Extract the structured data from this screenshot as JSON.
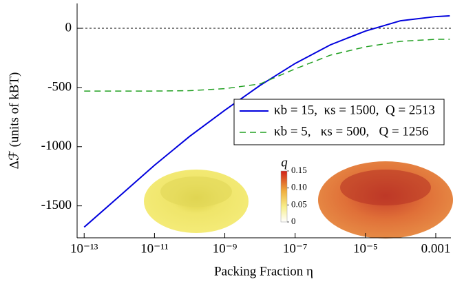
{
  "chart_data": {
    "type": "line",
    "xlabel": "Packing Fraction η",
    "ylabel": "Δℱ (units of kBT)",
    "xscale": "log",
    "xlim": [
      6.3e-14,
      0.0027
    ],
    "ylim": [
      -1770,
      210
    ],
    "xticks": [
      {
        "value": 1e-13,
        "label": "10⁻¹³"
      },
      {
        "value": 1e-11,
        "label": "10⁻¹¹"
      },
      {
        "value": 1e-09,
        "label": "10⁻⁹"
      },
      {
        "value": 1e-07,
        "label": "10⁻⁷"
      },
      {
        "value": 1e-05,
        "label": "10⁻⁵"
      },
      0.001
    ],
    "yticks": [
      0,
      -500,
      -1000,
      -1500
    ],
    "hline": 0,
    "x": [
      1e-13,
      1e-12,
      1e-11,
      1e-10,
      1e-09,
      1e-08,
      1e-07,
      1e-06,
      1e-05,
      0.0001,
      0.001,
      0.0025
    ],
    "series": [
      {
        "name": "κb = 15,  κs = 1500,  Q = 2513",
        "color": "#0000dd",
        "dash": "solid",
        "values": [
          -1680,
          -1419,
          -1157,
          -913,
          -692,
          -483,
          -297,
          -140,
          -23,
          64,
          99,
          105
        ]
      },
      {
        "name": "κb = 5,   κs = 500,   Q = 1256",
        "color": "#22a022",
        "dash": "dashed",
        "values": [
          -530,
          -530,
          -530,
          -527,
          -510,
          -470,
          -343,
          -227,
          -157,
          -110,
          -93,
          -93
        ]
      }
    ],
    "legend": "right",
    "colorbar": {
      "label": "q",
      "lim": [
        0,
        0.15
      ],
      "ticks": [
        0,
        0.05,
        {
          "value": 0.1,
          "label": "0.10"
        },
        0.15
      ]
    }
  }
}
